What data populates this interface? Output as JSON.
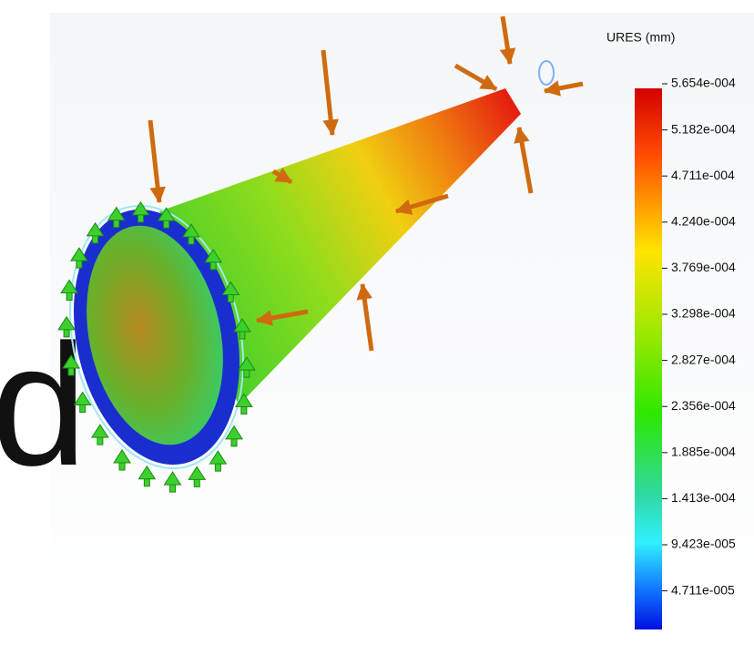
{
  "side_text": "d",
  "legend": {
    "title": "URES (mm)",
    "labels": [
      "5.654e-004",
      "5.182e-004",
      "4.711e-004",
      "4.240e-004",
      "3.769e-004",
      "3.298e-004",
      "2.827e-004",
      "2.356e-004",
      "1.885e-004",
      "1.413e-004",
      "9.423e-005",
      "4.711e-005"
    ]
  }
}
